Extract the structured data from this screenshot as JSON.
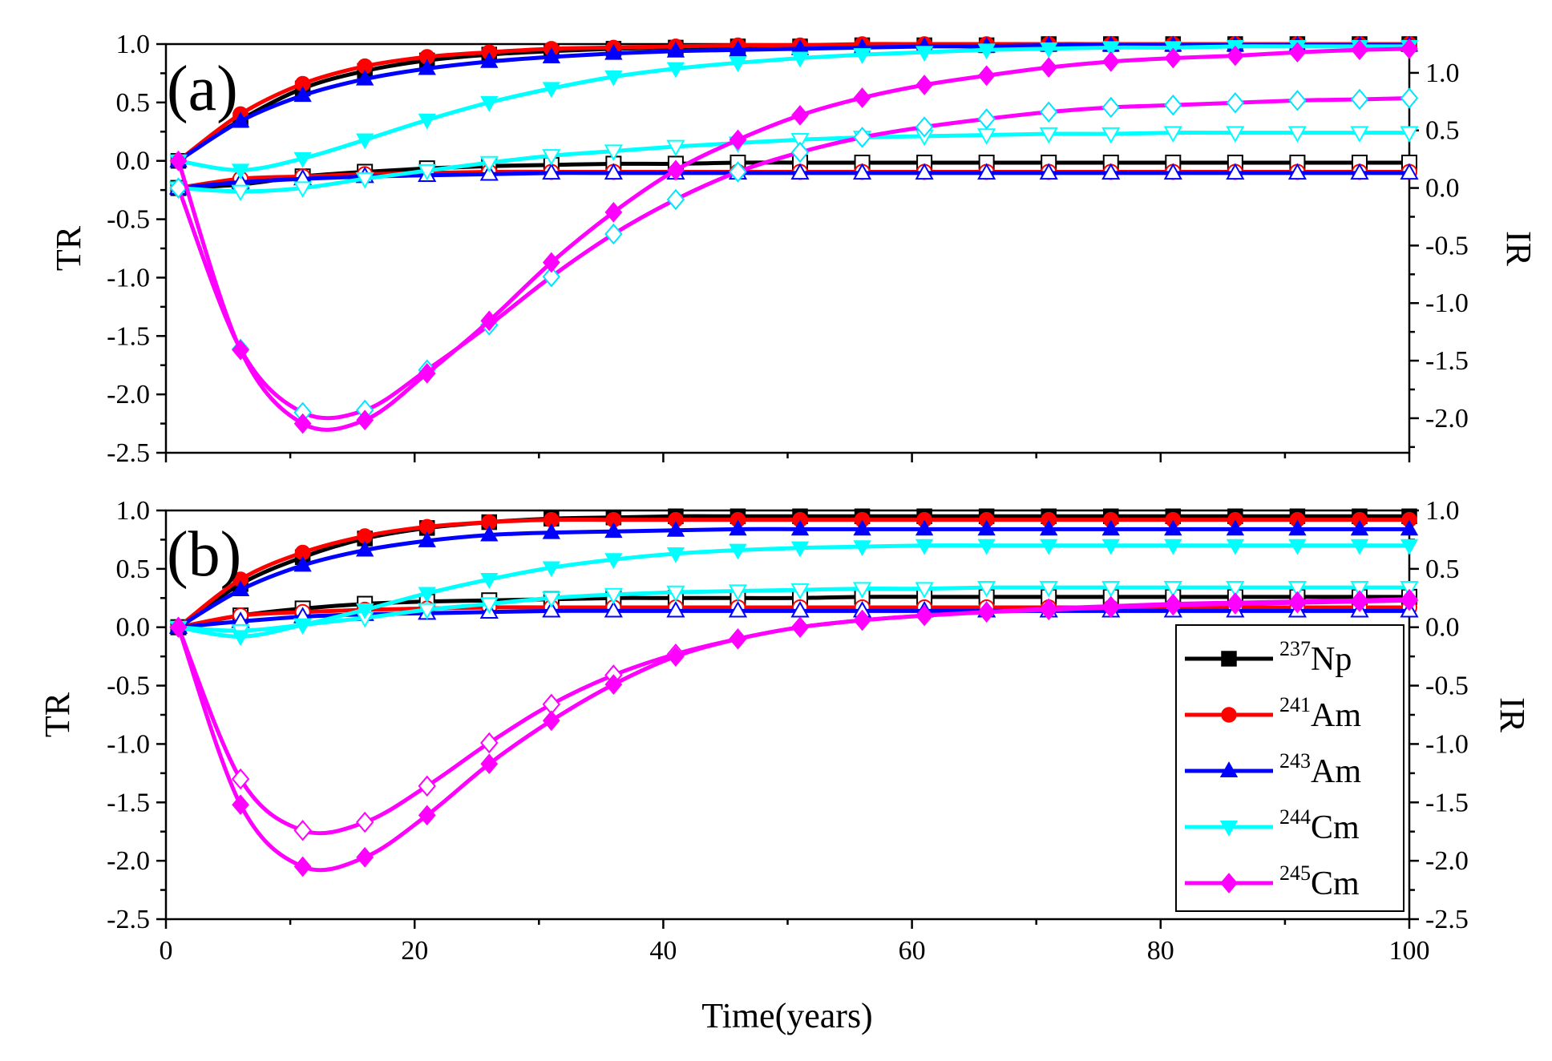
{
  "chart_data": [
    {
      "type": "line",
      "panel_label": "(a)",
      "ylabel": "TR",
      "y2label": "IR",
      "xlim": [
        0,
        100
      ],
      "ylim": [
        -2.5,
        1.0
      ],
      "y2lim": [
        -2.3,
        1.25
      ],
      "yticks": [
        "1.0",
        "0.5",
        "0.0",
        "-0.5",
        "-1.0",
        "-1.5",
        "-2.0",
        "-2.5"
      ],
      "y2ticks": [
        "1.0",
        "0.5",
        "0.0",
        "-0.5",
        "-1.0",
        "-1.5",
        "-2.0"
      ],
      "x": [
        1,
        6,
        11,
        16,
        21,
        26,
        31,
        36,
        41,
        46,
        51,
        56,
        61,
        66,
        71,
        76,
        81,
        86,
        91,
        96,
        100
      ],
      "series": [
        {
          "name": "237Np TR",
          "nuclide": "237Np",
          "axis": "TR",
          "color": "#000000",
          "marker": "square",
          "filled": true,
          "values": [
            0,
            0.35,
            0.62,
            0.77,
            0.86,
            0.91,
            0.94,
            0.96,
            0.97,
            0.98,
            0.98,
            0.99,
            0.99,
            0.99,
            1.0,
            1.0,
            1.0,
            1.0,
            1.0,
            1.0,
            1.0
          ]
        },
        {
          "name": "241Am TR",
          "nuclide": "241Am",
          "axis": "TR",
          "color": "#ff0000",
          "marker": "circle",
          "filled": true,
          "values": [
            0,
            0.4,
            0.66,
            0.81,
            0.89,
            0.93,
            0.96,
            0.97,
            0.98,
            0.99,
            0.99,
            1.0,
            1.0,
            1.0,
            1.0,
            1.0,
            1.0,
            1.0,
            1.0,
            1.0,
            1.0
          ]
        },
        {
          "name": "243Am TR",
          "nuclide": "243Am",
          "axis": "TR",
          "color": "#0000ff",
          "marker": "triangle-up",
          "filled": true,
          "values": [
            0,
            0.34,
            0.56,
            0.7,
            0.79,
            0.85,
            0.89,
            0.92,
            0.94,
            0.95,
            0.96,
            0.97,
            0.98,
            0.98,
            0.99,
            0.99,
            0.99,
            0.99,
            0.99,
            0.99,
            0.99
          ]
        },
        {
          "name": "244Cm TR",
          "nuclide": "244Cm",
          "axis": "TR",
          "color": "#00ffff",
          "marker": "triangle-down",
          "filled": true,
          "values": [
            0,
            -0.08,
            0.02,
            0.18,
            0.35,
            0.5,
            0.62,
            0.72,
            0.79,
            0.84,
            0.88,
            0.91,
            0.93,
            0.95,
            0.96,
            0.97,
            0.97,
            0.98,
            0.98,
            0.98,
            0.98
          ]
        },
        {
          "name": "245Cm TR",
          "nuclide": "245Cm",
          "axis": "TR",
          "color": "#ff00ff",
          "marker": "diamond",
          "filled": true,
          "values": [
            0,
            -1.62,
            -2.25,
            -2.22,
            -1.82,
            -1.37,
            -0.87,
            -0.44,
            -0.08,
            0.18,
            0.39,
            0.54,
            0.65,
            0.73,
            0.8,
            0.85,
            0.88,
            0.9,
            0.93,
            0.95,
            0.96
          ]
        },
        {
          "name": "237Np IR",
          "nuclide": "237Np",
          "axis": "IR",
          "color": "#000000",
          "marker": "square",
          "filled": false,
          "values": [
            0,
            0.03,
            0.1,
            0.14,
            0.17,
            0.19,
            0.2,
            0.21,
            0.21,
            0.22,
            0.22,
            0.22,
            0.22,
            0.22,
            0.22,
            0.22,
            0.22,
            0.22,
            0.22,
            0.22,
            0.22
          ]
        },
        {
          "name": "241Am IR",
          "nuclide": "241Am",
          "axis": "IR",
          "color": "#ff0000",
          "marker": "circle",
          "filled": false,
          "values": [
            0.0,
            0.08,
            0.1,
            0.12,
            0.13,
            0.14,
            0.14,
            0.14,
            0.14,
            0.14,
            0.14,
            0.14,
            0.14,
            0.14,
            0.14,
            0.14,
            0.14,
            0.14,
            0.14,
            0.14,
            0.14
          ]
        },
        {
          "name": "243Am IR",
          "nuclide": "243Am",
          "axis": "IR",
          "color": "#0000ff",
          "marker": "triangle-up",
          "filled": false,
          "values": [
            0,
            0.05,
            0.08,
            0.1,
            0.11,
            0.12,
            0.13,
            0.13,
            0.13,
            0.13,
            0.13,
            0.13,
            0.13,
            0.13,
            0.13,
            0.13,
            0.13,
            0.13,
            0.13,
            0.13,
            0.13
          ]
        },
        {
          "name": "244Cm IR",
          "nuclide": "244Cm",
          "axis": "IR",
          "color": "#00ffff",
          "marker": "triangle-down",
          "filled": false,
          "values": [
            0,
            -0.03,
            0.0,
            0.08,
            0.15,
            0.22,
            0.28,
            0.32,
            0.36,
            0.39,
            0.42,
            0.44,
            0.45,
            0.46,
            0.47,
            0.47,
            0.48,
            0.48,
            0.48,
            0.48,
            0.48
          ]
        },
        {
          "name": "245Cm IR",
          "nuclide": "245Cm",
          "axis": "IR",
          "color": "#ff00ff",
          "marker": "diamond",
          "filled": false,
          "values": [
            0,
            -1.4,
            -1.95,
            -1.93,
            -1.58,
            -1.19,
            -0.77,
            -0.4,
            -0.1,
            0.14,
            0.31,
            0.44,
            0.53,
            0.6,
            0.66,
            0.7,
            0.72,
            0.74,
            0.76,
            0.77,
            0.78
          ]
        }
      ]
    },
    {
      "type": "line",
      "panel_label": "(b)",
      "ylabel": "TR",
      "y2label": "IR",
      "xlabel": "Time(years)",
      "xlim": [
        0,
        100
      ],
      "ylim": [
        -2.5,
        1.0
      ],
      "y2lim": [
        -2.5,
        1.0
      ],
      "xticks": [
        "0",
        "20",
        "40",
        "60",
        "80",
        "100"
      ],
      "yticks": [
        "1.0",
        "0.5",
        "0.0",
        "-0.5",
        "-1.0",
        "-1.5",
        "-2.0",
        "-2.5"
      ],
      "y2ticks": [
        "1.0",
        "0.5",
        "0.0",
        "-0.5",
        "-1.0",
        "-1.5",
        "-2.0",
        "-2.5"
      ],
      "x": [
        1,
        6,
        11,
        16,
        21,
        26,
        31,
        36,
        41,
        46,
        51,
        56,
        61,
        66,
        71,
        76,
        81,
        86,
        91,
        96,
        100
      ],
      "series": [
        {
          "name": "237Np TR",
          "nuclide": "237Np",
          "axis": "TR",
          "color": "#000000",
          "marker": "square",
          "filled": true,
          "values": [
            0,
            0.37,
            0.6,
            0.76,
            0.85,
            0.9,
            0.93,
            0.94,
            0.95,
            0.95,
            0.95,
            0.95,
            0.95,
            0.95,
            0.95,
            0.95,
            0.95,
            0.95,
            0.95,
            0.95,
            0.95
          ]
        },
        {
          "name": "241Am TR",
          "nuclide": "241Am",
          "axis": "TR",
          "color": "#ff0000",
          "marker": "circle",
          "filled": true,
          "values": [
            0,
            0.41,
            0.64,
            0.78,
            0.86,
            0.9,
            0.92,
            0.92,
            0.92,
            0.92,
            0.92,
            0.92,
            0.92,
            0.92,
            0.92,
            0.92,
            0.92,
            0.92,
            0.92,
            0.92,
            0.92
          ]
        },
        {
          "name": "243Am TR",
          "nuclide": "243Am",
          "axis": "TR",
          "color": "#0000ff",
          "marker": "triangle-up",
          "filled": true,
          "values": [
            0,
            0.32,
            0.53,
            0.66,
            0.74,
            0.79,
            0.81,
            0.82,
            0.83,
            0.84,
            0.84,
            0.84,
            0.84,
            0.84,
            0.84,
            0.84,
            0.84,
            0.84,
            0.84,
            0.84,
            0.84
          ]
        },
        {
          "name": "244Cm TR",
          "nuclide": "244Cm",
          "axis": "TR",
          "color": "#00ffff",
          "marker": "triangle-down",
          "filled": true,
          "values": [
            0,
            -0.08,
            0.02,
            0.15,
            0.29,
            0.41,
            0.51,
            0.58,
            0.63,
            0.66,
            0.68,
            0.69,
            0.7,
            0.7,
            0.7,
            0.7,
            0.7,
            0.7,
            0.7,
            0.7,
            0.7
          ]
        },
        {
          "name": "245Cm TR",
          "nuclide": "245Cm",
          "axis": "TR",
          "color": "#ff00ff",
          "marker": "diamond",
          "filled": true,
          "values": [
            0,
            -1.52,
            -2.05,
            -1.97,
            -1.61,
            -1.17,
            -0.8,
            -0.49,
            -0.25,
            -0.1,
            0.0,
            0.06,
            0.1,
            0.13,
            0.16,
            0.18,
            0.2,
            0.21,
            0.22,
            0.23,
            0.24
          ]
        },
        {
          "name": "237Np IR",
          "nuclide": "237Np",
          "axis": "IR",
          "color": "#000000",
          "marker": "square",
          "filled": false,
          "values": [
            0,
            0.1,
            0.16,
            0.2,
            0.22,
            0.23,
            0.24,
            0.25,
            0.25,
            0.25,
            0.25,
            0.26,
            0.26,
            0.26,
            0.26,
            0.26,
            0.26,
            0.26,
            0.26,
            0.26,
            0.26
          ]
        },
        {
          "name": "241Am IR",
          "nuclide": "241Am",
          "axis": "IR",
          "color": "#ff0000",
          "marker": "circle",
          "filled": false,
          "values": [
            0,
            0.1,
            0.13,
            0.15,
            0.16,
            0.17,
            0.17,
            0.17,
            0.17,
            0.17,
            0.17,
            0.17,
            0.17,
            0.17,
            0.17,
            0.17,
            0.17,
            0.17,
            0.17,
            0.17,
            0.17
          ]
        },
        {
          "name": "243Am IR",
          "nuclide": "243Am",
          "axis": "IR",
          "color": "#0000ff",
          "marker": "triangle-up",
          "filled": false,
          "values": [
            0,
            0.05,
            0.09,
            0.11,
            0.12,
            0.13,
            0.14,
            0.14,
            0.14,
            0.14,
            0.14,
            0.14,
            0.14,
            0.14,
            0.14,
            0.14,
            0.14,
            0.14,
            0.14,
            0.14,
            0.14
          ]
        },
        {
          "name": "244Cm IR",
          "nuclide": "244Cm",
          "axis": "IR",
          "color": "#00ffff",
          "marker": "triangle-down",
          "filled": false,
          "values": [
            0,
            -0.03,
            0.02,
            0.08,
            0.15,
            0.2,
            0.25,
            0.28,
            0.3,
            0.31,
            0.32,
            0.33,
            0.33,
            0.34,
            0.34,
            0.34,
            0.34,
            0.34,
            0.34,
            0.34,
            0.34
          ]
        },
        {
          "name": "245Cm IR",
          "nuclide": "245Cm",
          "axis": "IR",
          "color": "#ff00ff",
          "marker": "diamond",
          "filled": false,
          "values": [
            0,
            -1.3,
            -1.74,
            -1.67,
            -1.36,
            -0.99,
            -0.66,
            -0.41,
            -0.23,
            -0.1,
            0.0,
            0.06,
            0.1,
            0.13,
            0.15,
            0.17,
            0.19,
            0.2,
            0.21,
            0.22,
            0.23
          ]
        }
      ],
      "legend": {
        "position": "lower-right",
        "items": [
          {
            "mass": "237",
            "element": "Np",
            "color": "#000000",
            "marker": "square"
          },
          {
            "mass": "241",
            "element": "Am",
            "color": "#ff0000",
            "marker": "circle"
          },
          {
            "mass": "243",
            "element": "Am",
            "color": "#0000ff",
            "marker": "triangle-up"
          },
          {
            "mass": "244",
            "element": "Cm",
            "color": "#00ffff",
            "marker": "triangle-down"
          },
          {
            "mass": "245",
            "element": "Cm",
            "color": "#ff00ff",
            "marker": "diamond"
          }
        ]
      }
    }
  ]
}
